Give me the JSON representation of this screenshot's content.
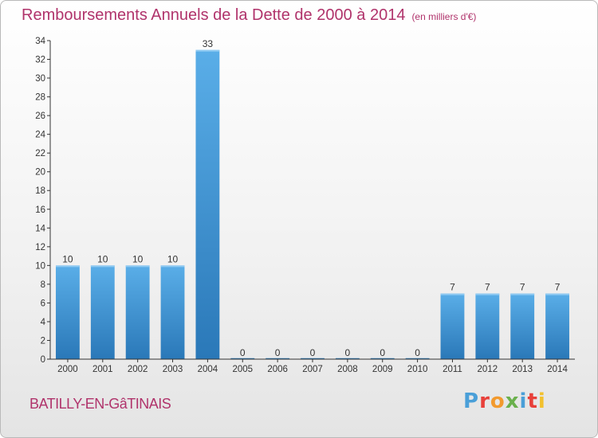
{
  "header": {
    "title": "Remboursements Annuels de la Dette de 2000 à 2014",
    "subtitle": "(en milliers d'€)"
  },
  "footer": {
    "commune": "BATILLY-EN-GâTINAIS",
    "brand": "Proxiti",
    "brand_colors": [
      "#4a9fd8",
      "#e8403a",
      "#f29a2e",
      "#6ab04c",
      "#4a9fd8",
      "#e8403a",
      "#f2c12e"
    ]
  },
  "colors": {
    "bar_top": "#5aaee8",
    "bar_bottom": "#2a78b8",
    "axis": "#333333",
    "text": "#333333",
    "title": "#b0336b"
  },
  "chart_data": {
    "type": "bar",
    "categories": [
      "2000",
      "2001",
      "2002",
      "2003",
      "2004",
      "2005",
      "2006",
      "2007",
      "2008",
      "2009",
      "2010",
      "2011",
      "2012",
      "2013",
      "2014"
    ],
    "values": [
      10,
      10,
      10,
      10,
      33,
      0,
      0,
      0,
      0,
      0,
      0,
      7,
      7,
      7,
      7
    ],
    "data_labels": [
      "10",
      "10",
      "10",
      "10",
      "33",
      "0",
      "0",
      "0",
      "0",
      "0",
      "0",
      "7",
      "7",
      "7",
      "7"
    ],
    "title": "Remboursements Annuels de la Dette de 2000 à 2014",
    "xlabel": "",
    "ylabel": "",
    "ylim": [
      0,
      34
    ],
    "yticks": [
      "0",
      "2",
      "4",
      "6",
      "8",
      "10",
      "12",
      "14",
      "16",
      "18",
      "20",
      "22",
      "24",
      "26",
      "28",
      "30",
      "32",
      "34"
    ],
    "grid": false,
    "legend": "none"
  }
}
